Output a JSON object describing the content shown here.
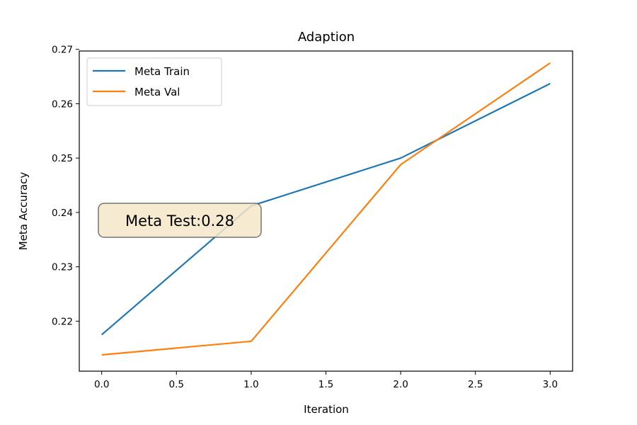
{
  "chart_data": {
    "type": "line",
    "title": "Adaption",
    "xlabel": "Iteration",
    "ylabel": "Meta Accuracy",
    "x": [
      0,
      1,
      2,
      3
    ],
    "xlim": [
      -0.15,
      3.15
    ],
    "ylim": [
      0.2108,
      0.2697
    ],
    "xticks": [
      0.0,
      0.5,
      1.0,
      1.5,
      2.0,
      2.5,
      3.0
    ],
    "xtick_labels": [
      "0.0",
      "0.5",
      "1.0",
      "1.5",
      "2.0",
      "2.5",
      "3.0"
    ],
    "yticks": [
      0.22,
      0.23,
      0.24,
      0.25,
      0.26,
      0.27
    ],
    "ytick_labels": [
      "0.22",
      "0.23",
      "0.24",
      "0.25",
      "0.26",
      "0.27"
    ],
    "grid": false,
    "legend_position": "top-left",
    "series": [
      {
        "name": "Meta Train",
        "color": "#1f77b4",
        "values": [
          0.2175,
          0.2412,
          0.25,
          0.2637
        ]
      },
      {
        "name": "Meta Val",
        "color": "#ff7f0e",
        "values": [
          0.2138,
          0.2163,
          0.2488,
          0.2675
        ]
      }
    ],
    "annotation": {
      "text": "Meta Test:0.28",
      "box_color": "#f5e6c8"
    }
  }
}
